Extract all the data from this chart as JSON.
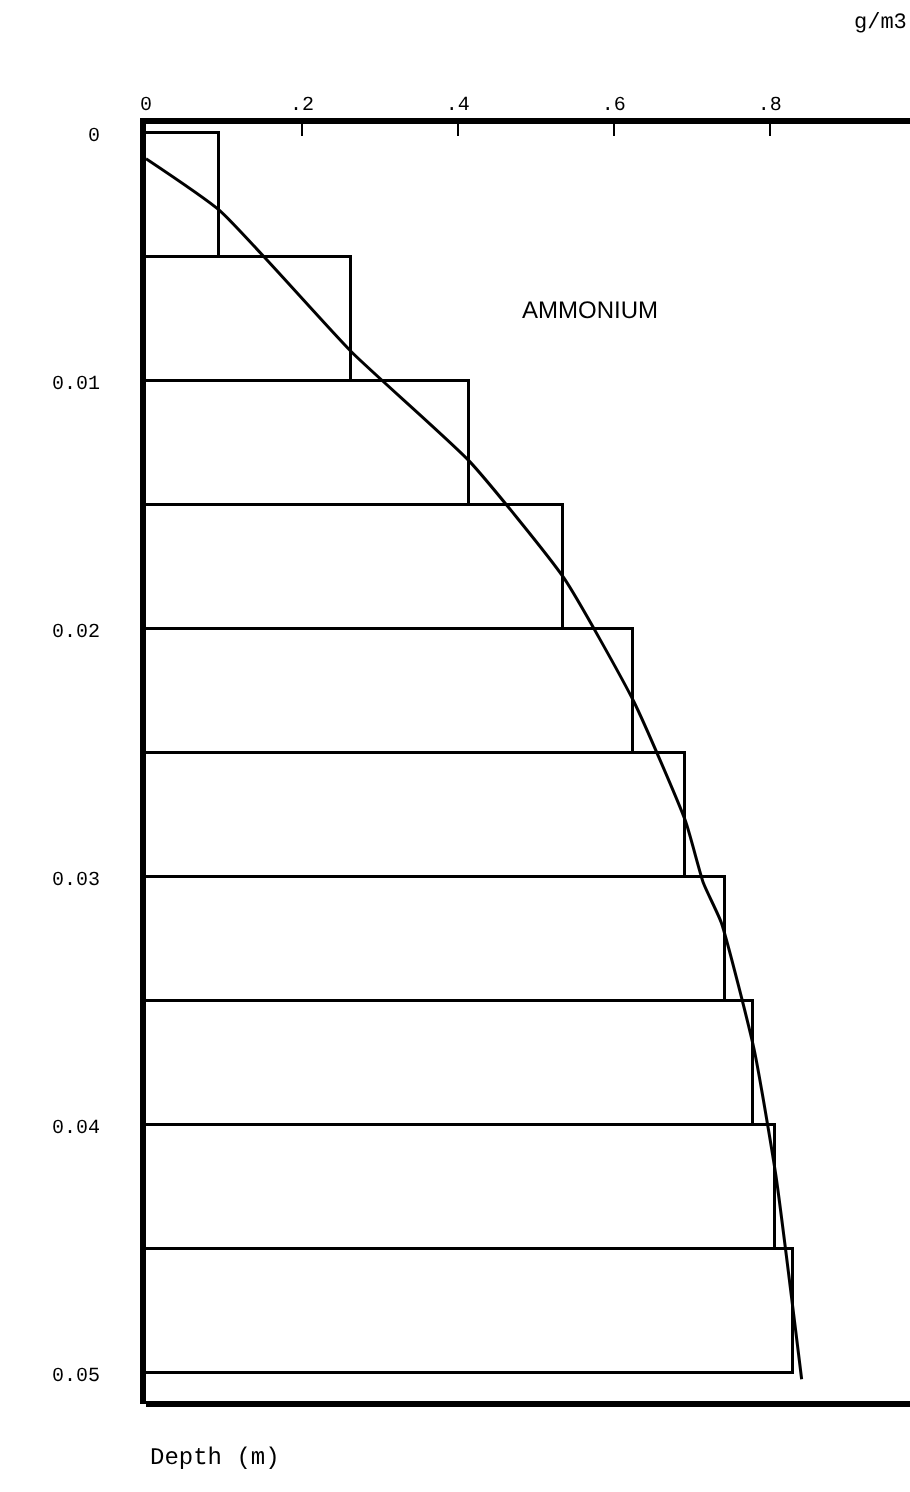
{
  "chart_data": {
    "type": "histogram",
    "orientation": "horizontal",
    "xlabel": "g/m3",
    "annotations": [
      "AMMONIUM",
      "Depth (m)"
    ],
    "bins": [
      0,
      0.005,
      0.01,
      0.015,
      0.02,
      0.025,
      0.03,
      0.035,
      0.04,
      0.045,
      0.05
    ],
    "values": [
      0.095,
      0.264,
      0.415,
      0.536,
      0.626,
      0.692,
      0.744,
      0.78,
      0.808,
      0.83
    ],
    "color": "#ffffff",
    "series": [
      {
        "type": "line",
        "color": "#000000",
        "x": [
          0.001,
          0.0031,
          0.0088,
          0.0132,
          0.0179,
          0.0229,
          0.0277,
          0.0302,
          0.0318,
          0.0369,
          0.042,
          0.0502
        ],
        "values": [
          0,
          0.095,
          0.264,
          0.415,
          0.536,
          0.626,
          0.692,
          0.715,
          0.738,
          0.78,
          0.808,
          0.841
        ]
      }
    ],
    "xlim": [
      0,
      0.98
    ],
    "xticks": [
      0,
      {
        "value": 0.2,
        "label": ".2"
      },
      {
        "value": 0.4,
        "label": ".4"
      },
      {
        "value": 0.6,
        "label": ".6"
      },
      {
        "value": 0.8,
        "label": ".8"
      }
    ],
    "ylim": [
      0.0512,
      -0.0004
    ],
    "yticks": [
      0,
      0.01,
      0.02,
      0.03,
      0.04,
      0.05
    ],
    "grid": false,
    "marker": "none",
    "line_style": "solid"
  }
}
